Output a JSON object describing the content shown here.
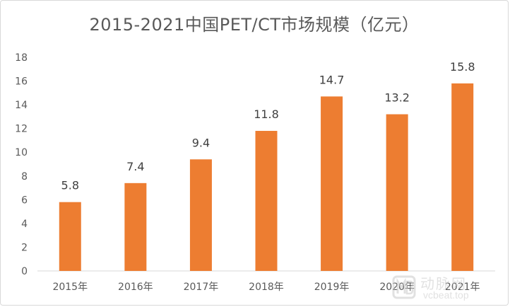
{
  "chart_data": {
    "type": "bar",
    "title": "2015-2021中国PET/CT市场规模（亿元）",
    "categories": [
      "2015年",
      "2016年",
      "2017年",
      "2018年",
      "2019年",
      "2020年",
      "2021年"
    ],
    "values": [
      5.8,
      7.4,
      9.4,
      11.8,
      14.7,
      13.2,
      15.8
    ],
    "data_labels": [
      "5.8",
      "7.4",
      "9.4",
      "11.8",
      "14.7",
      "13.2",
      "15.8"
    ],
    "ylim": [
      0,
      18
    ],
    "yticks": [
      "0",
      "2",
      "4",
      "6",
      "8",
      "10",
      "12",
      "14",
      "16",
      "18"
    ],
    "xlabel": "",
    "ylabel": "",
    "grid": false,
    "legend": "none",
    "bar_color": "#ED7D31"
  },
  "watermark": {
    "brand": "动脉网",
    "url": "vcbeat.top"
  }
}
